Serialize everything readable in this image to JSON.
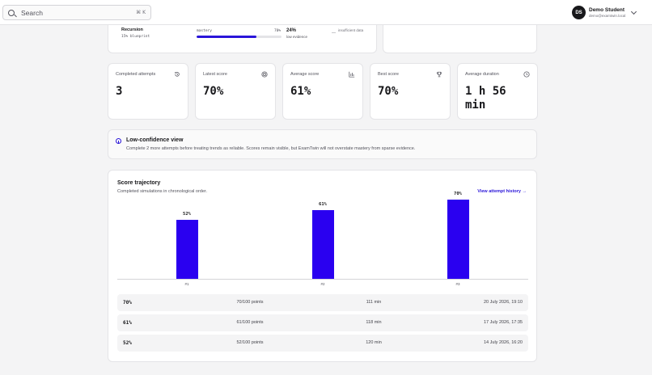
{
  "header": {
    "search_placeholder": "Search",
    "search_shortcut": "⌘ K",
    "user": {
      "initials": "DS",
      "name": "Demo Student",
      "email": "demo@examtwin.local"
    }
  },
  "topic": {
    "title": "Recursion",
    "subtitle": "15% blueprint",
    "mastery_label": "mastery",
    "mastery_value": "70%",
    "mastery_fraction": 0.7,
    "evidence_pct": "24%",
    "evidence_label": "low evidence",
    "insufficient_dash": "—",
    "insufficient_label": "insufficient data"
  },
  "metrics": [
    {
      "label": "Completed attempts",
      "value": "3",
      "icon": "history-icon"
    },
    {
      "label": "Latest score",
      "value": "70%",
      "icon": "target-icon"
    },
    {
      "label": "Average score",
      "value": "61%",
      "icon": "bar-chart-icon"
    },
    {
      "label": "Best score",
      "value": "70%",
      "icon": "trophy-icon"
    },
    {
      "label": "Average duration",
      "value": "1 h 56 min",
      "icon": "clock-icon"
    }
  ],
  "banner": {
    "title": "Low-confidence view",
    "text": "Complete 2 more attempts before treating trends as reliable. Scores remain visible, but ExamTwin will not overstate mastery from sparse evidence."
  },
  "trajectory": {
    "title": "Score trajectory",
    "subtitle": "Completed simulations in chronological order.",
    "link": "View attempt history →"
  },
  "chart_data": {
    "type": "bar",
    "categories": [
      "#1",
      "#2",
      "#3"
    ],
    "values": [
      52,
      61,
      70
    ],
    "value_labels": [
      "52%",
      "61%",
      "70%"
    ],
    "ylim": [
      0,
      100
    ],
    "grid": false,
    "color": "#2a00f0"
  },
  "attempts": [
    {
      "score": "70%",
      "points": "70/100 points",
      "duration": "111 min",
      "date": "20 July 2026, 19:10"
    },
    {
      "score": "61%",
      "points": "61/100 points",
      "duration": "118 min",
      "date": "17 July 2026, 17:35"
    },
    {
      "score": "52%",
      "points": "52/100 points",
      "duration": "120 min",
      "date": "14 July 2026, 16:20"
    }
  ]
}
